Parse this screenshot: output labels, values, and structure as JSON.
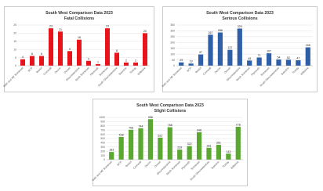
{
  "chart_data": [
    {
      "type": "bar",
      "title": "South West Comparison Data 2023",
      "subtitle": "Fatal Collisions",
      "color": "#e8141a",
      "categories": [
        "Bath and NE Somerset",
        "BCP",
        "Bristol",
        "Cornwall",
        "Devon",
        "Dorset",
        "Gloucestershire",
        "North Somerset",
        "Plymouth",
        "Somerset",
        "South Gloucestershire",
        "Swindon",
        "Torbay",
        "Wiltshire"
      ],
      "values": [
        4,
        6,
        6,
        23,
        21,
        9,
        16,
        3,
        1,
        23,
        8,
        2,
        2,
        20
      ],
      "ylim": [
        0,
        25
      ],
      "yticks": [
        0,
        5,
        10,
        15,
        20,
        25
      ],
      "grid": true
    },
    {
      "type": "bar",
      "title": "South West Comparison Data 2023",
      "subtitle": "Serious Collisions",
      "color": "#2e5fa8",
      "categories": [
        "Bath and NE Somerset",
        "BCP",
        "Bristol",
        "Cornwall",
        "Devon",
        "Dorset",
        "Gloucestershire",
        "North Somerset",
        "Plymouth",
        "Somerset",
        "South Gloucestershire",
        "Swindon",
        "Torbay",
        "Wiltshire"
      ],
      "values": [
        29,
        19,
        97,
        267,
        286,
        137,
        320,
        45,
        71,
        107,
        54,
        52,
        47,
        158
      ],
      "ylim": [
        0,
        350
      ],
      "yticks": [
        0,
        50,
        100,
        150,
        200,
        250,
        300,
        350
      ],
      "grid": true
    },
    {
      "type": "bar",
      "title": "South West Comparison Data 2023",
      "subtitle": "Slight Collisions",
      "color": "#5aa832",
      "categories": [
        "Bath and NE Somerset",
        "BCP",
        "Bristol",
        "Cornwall",
        "Devon",
        "Dorset",
        "Gloucestershire",
        "North Somerset",
        "Plymouth",
        "Somerset",
        "South Gloucestershire",
        "Swindon",
        "Torbay",
        "Wiltshire"
      ],
      "values": [
        183,
        538,
        708,
        744,
        958,
        522,
        768,
        239,
        322,
        648,
        281,
        351,
        143,
        778
      ],
      "ylim": [
        0,
        1000
      ],
      "yticks": [
        0,
        100,
        200,
        300,
        400,
        500,
        600,
        700,
        800,
        900,
        1000
      ],
      "grid": true
    }
  ]
}
